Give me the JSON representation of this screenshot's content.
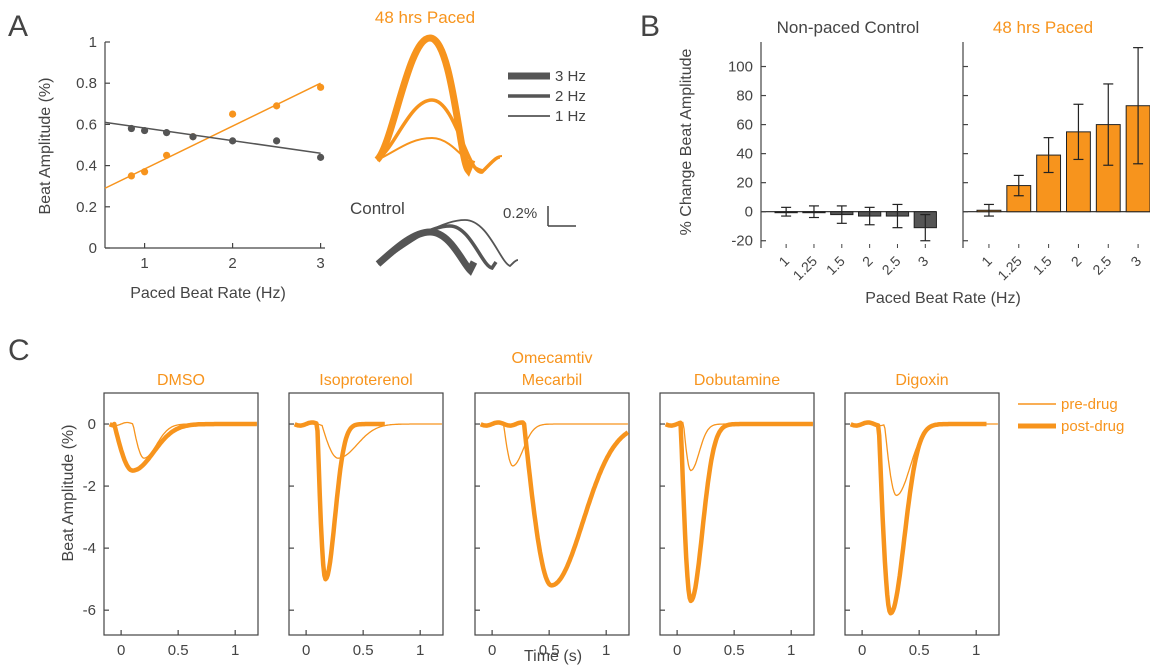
{
  "panel_labels": {
    "a": "A",
    "b": "B",
    "c": "C"
  },
  "colors": {
    "orange": "#F7941D",
    "gray": "#555555",
    "dark_bar": "#555555"
  },
  "chart_data": [
    {
      "panel": "A",
      "type": "scatter",
      "xlabel": "Paced Beat Rate (Hz)",
      "ylabel": "Beat Amplitude (%)",
      "xlim": [
        0.55,
        3.05
      ],
      "ylim": [
        0,
        1
      ],
      "xticks": [
        "1",
        "2",
        "3"
      ],
      "yticks": [
        "0",
        "0.2",
        "0.4",
        "0.6",
        "0.8",
        "1"
      ],
      "series": [
        {
          "name": "48 hrs Paced",
          "color": "#F7941D",
          "x": [
            0.85,
            1.0,
            1.25,
            1.55,
            2.0,
            2.5,
            3.0
          ],
          "y": [
            0.35,
            0.37,
            0.45,
            0.54,
            0.65,
            0.69,
            0.78
          ],
          "fit": [
            [
              0.55,
              0.29
            ],
            [
              3.0,
              0.8
            ]
          ]
        },
        {
          "name": "Control",
          "color": "#555555",
          "x": [
            0.85,
            1.0,
            1.25,
            1.55,
            2.0,
            2.5,
            3.0
          ],
          "y": [
            0.58,
            0.57,
            0.56,
            0.54,
            0.52,
            0.52,
            0.44
          ],
          "fit": [
            [
              0.55,
              0.61
            ],
            [
              3.0,
              0.46
            ]
          ]
        }
      ]
    },
    {
      "panel": "A-inset",
      "type": "line",
      "labels": {
        "paced_title": "48 hrs Paced",
        "control_title": "Control",
        "scale": "0.2%"
      },
      "legend": [
        "3 Hz",
        "2 Hz",
        "1 Hz"
      ]
    },
    {
      "panel": "B",
      "type": "bar",
      "ylabel": "% Change Beat Amplitude",
      "xlabel": "Paced Beat Rate (Hz)",
      "ylim": [
        -25,
        110
      ],
      "yticks": [
        "-20",
        "0",
        "20",
        "40",
        "60",
        "80",
        "100"
      ],
      "categories": [
        "1",
        "1.25",
        "1.5",
        "2",
        "2.5",
        "3"
      ],
      "series": [
        {
          "name": "Non-paced Control",
          "values": [
            0,
            0,
            -2,
            -3,
            -3,
            -11
          ],
          "errors": [
            3,
            4,
            6,
            6,
            8,
            9
          ]
        },
        {
          "name": "48 hrs Paced",
          "values": [
            1,
            18,
            39,
            55,
            60,
            73
          ],
          "errors": [
            4,
            7,
            12,
            19,
            28,
            40
          ]
        }
      ]
    },
    {
      "panel": "C",
      "type": "line",
      "xlabel": "Time (s)",
      "ylabel": "Beat Amplitude (%)",
      "xlim": [
        -0.15,
        1.2
      ],
      "ylim": [
        -6.8,
        1
      ],
      "xticks": [
        "0",
        "0.5",
        "1"
      ],
      "yticks": [
        "0",
        "-2",
        "-4",
        "-6"
      ],
      "legend": [
        "pre-drug",
        "post-drug"
      ],
      "panels": [
        {
          "title": [
            "DMSO"
          ],
          "pre_min": -1.1,
          "pre_t": 0.2,
          "pre_w": 0.12,
          "post_min": -1.5,
          "post_t": 0.1,
          "post_w": 0.2,
          "post_end": 1.2
        },
        {
          "title": [
            "Isoproterenol"
          ],
          "pre_min": -1.1,
          "pre_t": 0.28,
          "pre_w": 0.18,
          "post_min": -5.0,
          "post_t": 0.17,
          "post_w": 0.09,
          "post_end": 0.7
        },
        {
          "title": [
            "Omecamtiv",
            "Mecarbil"
          ],
          "pre_min": -1.35,
          "pre_t": 0.18,
          "pre_w": 0.1,
          "post_min": -5.2,
          "post_t": 0.52,
          "post_w": 0.3,
          "post_end": 1.2
        },
        {
          "title": [
            "Dobutamine"
          ],
          "pre_min": -1.5,
          "pre_t": 0.12,
          "pre_w": 0.08,
          "post_min": -5.7,
          "post_t": 0.12,
          "post_w": 0.11,
          "post_end": 1.2
        },
        {
          "title": [
            "Digoxin"
          ],
          "pre_min": -2.3,
          "pre_t": 0.3,
          "pre_w": 0.13,
          "post_min": -6.1,
          "post_t": 0.25,
          "post_w": 0.13,
          "post_end": 1.1
        }
      ]
    }
  ]
}
